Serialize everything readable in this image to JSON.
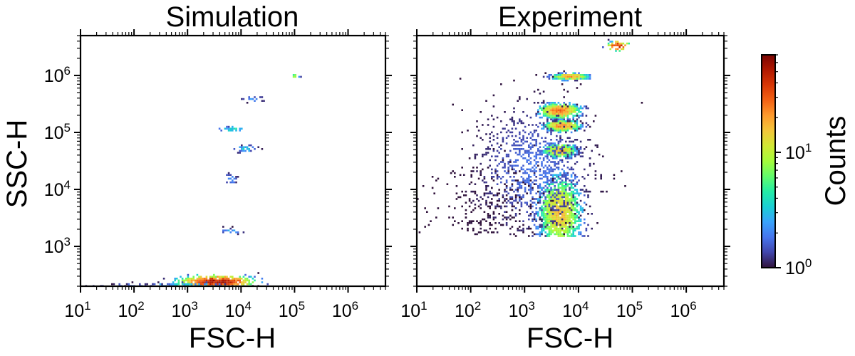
{
  "colors": {
    "colormap": [
      "#30123b",
      "#4145ab",
      "#4675ed",
      "#39a2fc",
      "#1bcfd4",
      "#24eca6",
      "#61fc6c",
      "#a4fc3b",
      "#d1e834",
      "#f3c63a",
      "#fe9b2d",
      "#f36315",
      "#d93806",
      "#b11901",
      "#7a0402"
    ],
    "frame": "#000000",
    "background": "#ffffff"
  },
  "chart_data": [
    {
      "type": "heatmap",
      "title": "Simulation",
      "xlabel": "FSC-H",
      "ylabel": "SSC-H",
      "x_scale": "log",
      "y_scale": "log",
      "xlim": [
        10,
        5000000
      ],
      "ylim": [
        200,
        5000000
      ],
      "x_ticks": [
        {
          "base": "10",
          "exp": "1"
        },
        {
          "base": "10",
          "exp": "2"
        },
        {
          "base": "10",
          "exp": "3"
        },
        {
          "base": "10",
          "exp": "4"
        },
        {
          "base": "10",
          "exp": "5"
        },
        {
          "base": "10",
          "exp": "6"
        }
      ],
      "y_ticks": [
        {
          "base": "10",
          "exp": "3"
        },
        {
          "base": "10",
          "exp": "4"
        },
        {
          "base": "10",
          "exp": "5"
        },
        {
          "base": "10",
          "exp": "6"
        }
      ],
      "clusters": [
        {
          "x": 3500,
          "y": 240,
          "sx": 0.32,
          "sy": 0.05,
          "n": 480,
          "peak": 70
        },
        {
          "x": 900,
          "y": 210,
          "sx": 0.45,
          "sy": 0.02,
          "n": 90,
          "peak": 4
        },
        {
          "x": 100,
          "y": 205,
          "sx": 0.5,
          "sy": 0.015,
          "n": 40,
          "peak": 2
        },
        {
          "x": 6500,
          "y": 1850,
          "sx": 0.12,
          "sy": 0.03,
          "n": 22,
          "peak": 3
        },
        {
          "x": 6500,
          "y": 15000,
          "sx": 0.07,
          "sy": 0.05,
          "n": 24,
          "peak": 3
        },
        {
          "x": 12000,
          "y": 52000,
          "sx": 0.12,
          "sy": 0.03,
          "n": 30,
          "peak": 4
        },
        {
          "x": 7000,
          "y": 115000,
          "sx": 0.14,
          "sy": 0.02,
          "n": 28,
          "peak": 5
        },
        {
          "x": 17000,
          "y": 380000,
          "sx": 0.12,
          "sy": 0.02,
          "n": 16,
          "peak": 3
        },
        {
          "x": 100000,
          "y": 970000,
          "sx": 0.05,
          "sy": 0.01,
          "n": 8,
          "peak": 12
        }
      ]
    },
    {
      "type": "heatmap",
      "title": "Experiment",
      "xlabel": "FSC-H",
      "ylabel": "",
      "x_scale": "log",
      "y_scale": "log",
      "xlim": [
        10,
        5000000
      ],
      "ylim": [
        200,
        5000000
      ],
      "x_ticks": [
        {
          "base": "10",
          "exp": "1"
        },
        {
          "base": "10",
          "exp": "2"
        },
        {
          "base": "10",
          "exp": "3"
        },
        {
          "base": "10",
          "exp": "4"
        },
        {
          "base": "10",
          "exp": "5"
        },
        {
          "base": "10",
          "exp": "6"
        }
      ],
      "y_ticks": [
        {
          "base": "10",
          "exp": "3"
        },
        {
          "base": "10",
          "exp": "4"
        },
        {
          "base": "10",
          "exp": "5"
        },
        {
          "base": "10",
          "exp": "6"
        }
      ],
      "y_floor": 1500,
      "clusters": [
        {
          "x": 4500,
          "y": 4000,
          "sx": 0.2,
          "sy": 0.32,
          "n": 1300,
          "peak": 20
        },
        {
          "x": 4500,
          "y": 48000,
          "sx": 0.15,
          "sy": 0.06,
          "n": 520,
          "peak": 22
        },
        {
          "x": 5000,
          "y": 130000,
          "sx": 0.16,
          "sy": 0.045,
          "n": 460,
          "peak": 30
        },
        {
          "x": 4500,
          "y": 240000,
          "sx": 0.18,
          "sy": 0.06,
          "n": 620,
          "peak": 35
        },
        {
          "x": 7000,
          "y": 950000,
          "sx": 0.16,
          "sy": 0.025,
          "n": 320,
          "peak": 30
        },
        {
          "x": 55000,
          "y": 3300000,
          "sx": 0.1,
          "sy": 0.04,
          "n": 50,
          "peak": 55
        },
        {
          "x": 1500,
          "y": 20000,
          "sx": 0.55,
          "sy": 0.6,
          "n": 950,
          "peak": 2
        },
        {
          "x": 300,
          "y": 5000,
          "sx": 0.6,
          "sy": 0.45,
          "n": 260,
          "peak": 1
        }
      ]
    }
  ],
  "colorbar": {
    "label": "Counts",
    "scale": "log",
    "range": [
      1,
      70
    ],
    "ticks": [
      {
        "base": "10",
        "exp": "0"
      },
      {
        "base": "10",
        "exp": "1"
      }
    ]
  }
}
